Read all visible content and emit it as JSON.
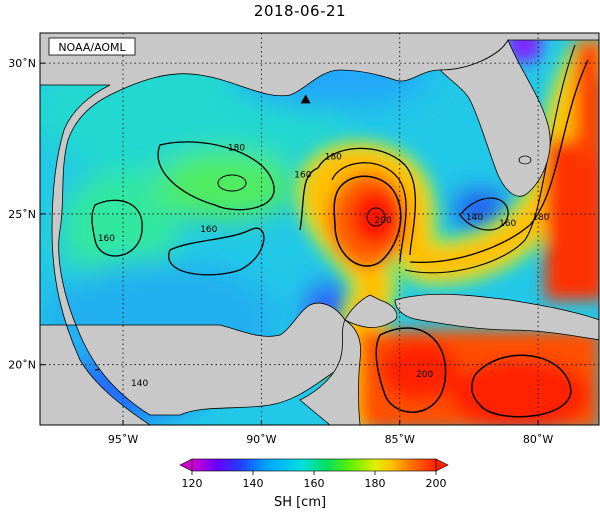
{
  "title": "2018-06-21",
  "credit": "NOAA/AOML",
  "axes": {
    "lon_range": [
      -98.0,
      -77.8
    ],
    "lat_range": [
      18.0,
      31.0
    ],
    "x_ticks": [
      {
        "lon": -95,
        "label": "95˚W"
      },
      {
        "lon": -90,
        "label": "90˚W"
      },
      {
        "lon": -85,
        "label": "85˚W"
      },
      {
        "lon": -80,
        "label": "80˚W"
      }
    ],
    "y_ticks": [
      {
        "lat": 30,
        "label": "30˚N"
      },
      {
        "lat": 25,
        "label": "25˚N"
      },
      {
        "lat": 20,
        "label": "20˚N"
      }
    ],
    "grid": "dotted"
  },
  "colorbar": {
    "label": "SH [cm]",
    "range": [
      120,
      200
    ],
    "ticks": [
      "120",
      "140",
      "160",
      "180",
      "200"
    ],
    "colors": [
      "#d000d0",
      "#6a00ff",
      "#2040ff",
      "#00a0ff",
      "#00e0e0",
      "#00e060",
      "#60f000",
      "#e0f000",
      "#ffc000",
      "#ff7000",
      "#ff2000"
    ]
  },
  "marker": {
    "type": "triangle",
    "lon": -88.4,
    "lat": 28.8
  },
  "contour_labels": [
    {
      "text": "180",
      "lon": -90.9,
      "lat": 27.1
    },
    {
      "text": "160",
      "lon": -91.9,
      "lat": 24.4
    },
    {
      "text": "160",
      "lon": -95.6,
      "lat": 24.1
    },
    {
      "text": "160",
      "lon": -88.5,
      "lat": 26.2
    },
    {
      "text": "180",
      "lon": -87.4,
      "lat": 26.8
    },
    {
      "text": "200",
      "lon": -85.6,
      "lat": 24.7
    },
    {
      "text": "140",
      "lon": -82.3,
      "lat": 24.8
    },
    {
      "text": "160",
      "lon": -81.1,
      "lat": 24.6
    },
    {
      "text": "180",
      "lon": -79.9,
      "lat": 24.8
    },
    {
      "text": "200",
      "lon": -84.1,
      "lat": 19.6
    },
    {
      "text": "140",
      "lon": -94.4,
      "lat": 19.3
    }
  ]
}
